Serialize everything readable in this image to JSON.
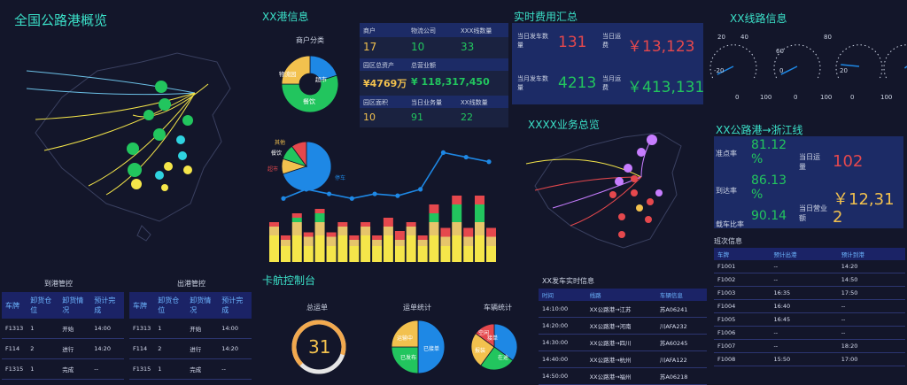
{
  "header": {
    "main_title": "全国公路港概览",
    "port_info_title": "XX港信息",
    "realtime_fee_title": "实时费用汇总",
    "line_info_title": "XX线路信息",
    "business_overview_title": "XXXX业务总览",
    "truck_control_title": "卡航控制台",
    "arrive_control_title": "到港管控",
    "depart_control_title": "出港管控",
    "route_title": "XX公路港→浙江线",
    "realtime_info_title": "XX发车实时信息",
    "schedule_title": "班次信息"
  },
  "merchant_pie": {
    "title": "商户分类",
    "slices": [
      {
        "label": "超市",
        "value": 20,
        "color": "#1e88e5"
      },
      {
        "label": "餐饮",
        "value": 55,
        "color": "#22c55e"
      },
      {
        "label": "物流园",
        "value": 25,
        "color": "#f2c14e"
      }
    ]
  },
  "port_stats": {
    "row1": [
      {
        "label": "商户",
        "value": "17",
        "color": "#f2c14e"
      },
      {
        "label": "物流公司",
        "value": "10",
        "color": "#22c55e"
      },
      {
        "label": "XXX线数量",
        "value": "33",
        "color": "#22c55e"
      }
    ],
    "row2_labels": [
      "园区总资产",
      "总营业额"
    ],
    "row2_values": [
      {
        "value": "¥4769万",
        "color": "#f2c14e"
      },
      {
        "value": "¥ 118,317,450",
        "color": "#22c55e"
      }
    ],
    "row3": [
      {
        "label": "园区面积",
        "value": "10",
        "color": "#f2c14e"
      },
      {
        "label": "当日业务量",
        "value": "91",
        "color": "#22c55e"
      },
      {
        "label": "XX线数量",
        "value": "22",
        "color": "#22c55e"
      }
    ]
  },
  "business_pie": {
    "slices": [
      {
        "label": "停车",
        "value": 70,
        "color": "#1e88e5"
      },
      {
        "label": "其他",
        "value": 10,
        "color": "#f2c14e"
      },
      {
        "label": "餐饮",
        "value": 10,
        "color": "#22c55e"
      },
      {
        "label": "超市",
        "value": 10,
        "color": "#e5484d"
      }
    ],
    "labels": [
      "其他",
      "餐饮",
      "超市",
      "停车"
    ]
  },
  "line_chart": {
    "values": [
      8,
      9,
      8.5,
      8,
      8.5,
      8.3,
      9,
      13,
      12.5,
      12
    ]
  },
  "stack_chart": {
    "groups": [
      [
        3,
        1,
        0,
        0.5
      ],
      [
        3,
        1.5,
        0.5,
        0.5
      ],
      [
        3,
        1.5,
        1,
        0.5
      ],
      [
        3,
        1,
        0,
        0.5
      ],
      [
        3,
        1,
        0,
        0.5
      ],
      [
        3,
        1,
        0,
        1
      ],
      [
        3,
        1,
        0,
        0.5
      ],
      [
        3,
        1.5,
        1,
        1
      ],
      [
        3,
        1.5,
        2,
        1
      ],
      [
        3,
        1.5,
        2,
        1
      ]
    ],
    "colors": [
      "#f5e64a",
      "#e6c56b",
      "#22c55e",
      "#e5484d"
    ]
  },
  "fees": {
    "day_left_label": "当日发车数量",
    "day_left_value": "131",
    "day_right_label": "当日运费",
    "day_right_value": "￥13,123",
    "month_left_label": "当月发车数量",
    "month_left_value": "4213",
    "month_right_label": "当月运费",
    "month_right_value": "￥413,131"
  },
  "gauges": {
    "ticks_top": [
      "20",
      "40",
      "60",
      "80"
    ],
    "ticks_left": [
      "-20",
      "0",
      "20"
    ],
    "ticks_bottom": [
      "0",
      "100"
    ],
    "count": 4
  },
  "route_stats": {
    "punctual_label": "准点率",
    "punctual_value": "81.12 %",
    "arrive_label": "到达率",
    "arrive_value": "86.13 %",
    "loading_label": "载车比率",
    "loading_value": "90.14",
    "day_volume_label": "当日运量",
    "day_volume_value": "102",
    "day_revenue_label": "当日营业额",
    "day_revenue_value": "￥12,31 2"
  },
  "arrive_table": {
    "headers": [
      "车牌",
      "卸货仓位",
      "卸货情况",
      "预计完成"
    ],
    "rows": [
      [
        "F1313",
        "1",
        "开始",
        "14:00"
      ],
      [
        "F114",
        "2",
        "进行",
        "14:20"
      ],
      [
        "F1315",
        "1",
        "完成",
        "--"
      ]
    ]
  },
  "depart_table": {
    "headers": [
      "车牌",
      "卸货仓位",
      "卸货情况",
      "预计完成"
    ],
    "rows": [
      [
        "F1313",
        "1",
        "开始",
        "14:00"
      ],
      [
        "F114",
        "2",
        "进行",
        "14:20"
      ],
      [
        "F1315",
        "1",
        "完成",
        "--"
      ]
    ]
  },
  "truck_console": {
    "total_title": "总运单",
    "total_value": "31",
    "stat_title": "运单统计",
    "vehicle_title": "车辆统计",
    "pie1": [
      {
        "label": "已接单",
        "value": 50,
        "color": "#1e88e5"
      },
      {
        "label": "已发布",
        "value": 25,
        "color": "#22c55e"
      },
      {
        "label": "运输中",
        "value": 25,
        "color": "#f2c14e"
      }
    ],
    "pie2": [
      {
        "label": "接单",
        "value": 35,
        "color": "#1e88e5"
      },
      {
        "label": "在途",
        "value": 25,
        "color": "#22c55e"
      },
      {
        "label": "报装",
        "value": 25,
        "color": "#f2c14e"
      },
      {
        "label": "空闲",
        "value": 15,
        "color": "#e5484d"
      }
    ]
  },
  "realtime_table": {
    "headers": [
      "时间",
      "线路",
      "车辆信息"
    ],
    "rows": [
      [
        "14:10:00",
        "XX公路港→江苏",
        "苏A06241"
      ],
      [
        "14:20:00",
        "XX公路港→河南",
        "川AFA232"
      ],
      [
        "14:30:00",
        "XX公路港→四川",
        "苏A60245"
      ],
      [
        "14:40:00",
        "XX公路港→杭州",
        "川AFA122"
      ],
      [
        "14:50:00",
        "XX公路港→福州",
        "苏A06218"
      ]
    ]
  },
  "schedule_table": {
    "headers": [
      "车牌",
      "预计出港",
      "预计到港"
    ],
    "rows": [
      [
        "F1001",
        "--",
        "14:20"
      ],
      [
        "F1002",
        "--",
        "14:50"
      ],
      [
        "F1003",
        "16:35",
        "17:50"
      ],
      [
        "F1004",
        "16:40",
        "--"
      ],
      [
        "F1005",
        "16:45",
        "--"
      ],
      [
        "F1006",
        "--",
        "--"
      ],
      [
        "F1007",
        "--",
        "18:20"
      ],
      [
        "F1008",
        "15:50",
        "17:00"
      ]
    ]
  },
  "colors": {
    "accent": "#3be0c8",
    "panel": "#1c2b66",
    "bg": "#13162a"
  }
}
